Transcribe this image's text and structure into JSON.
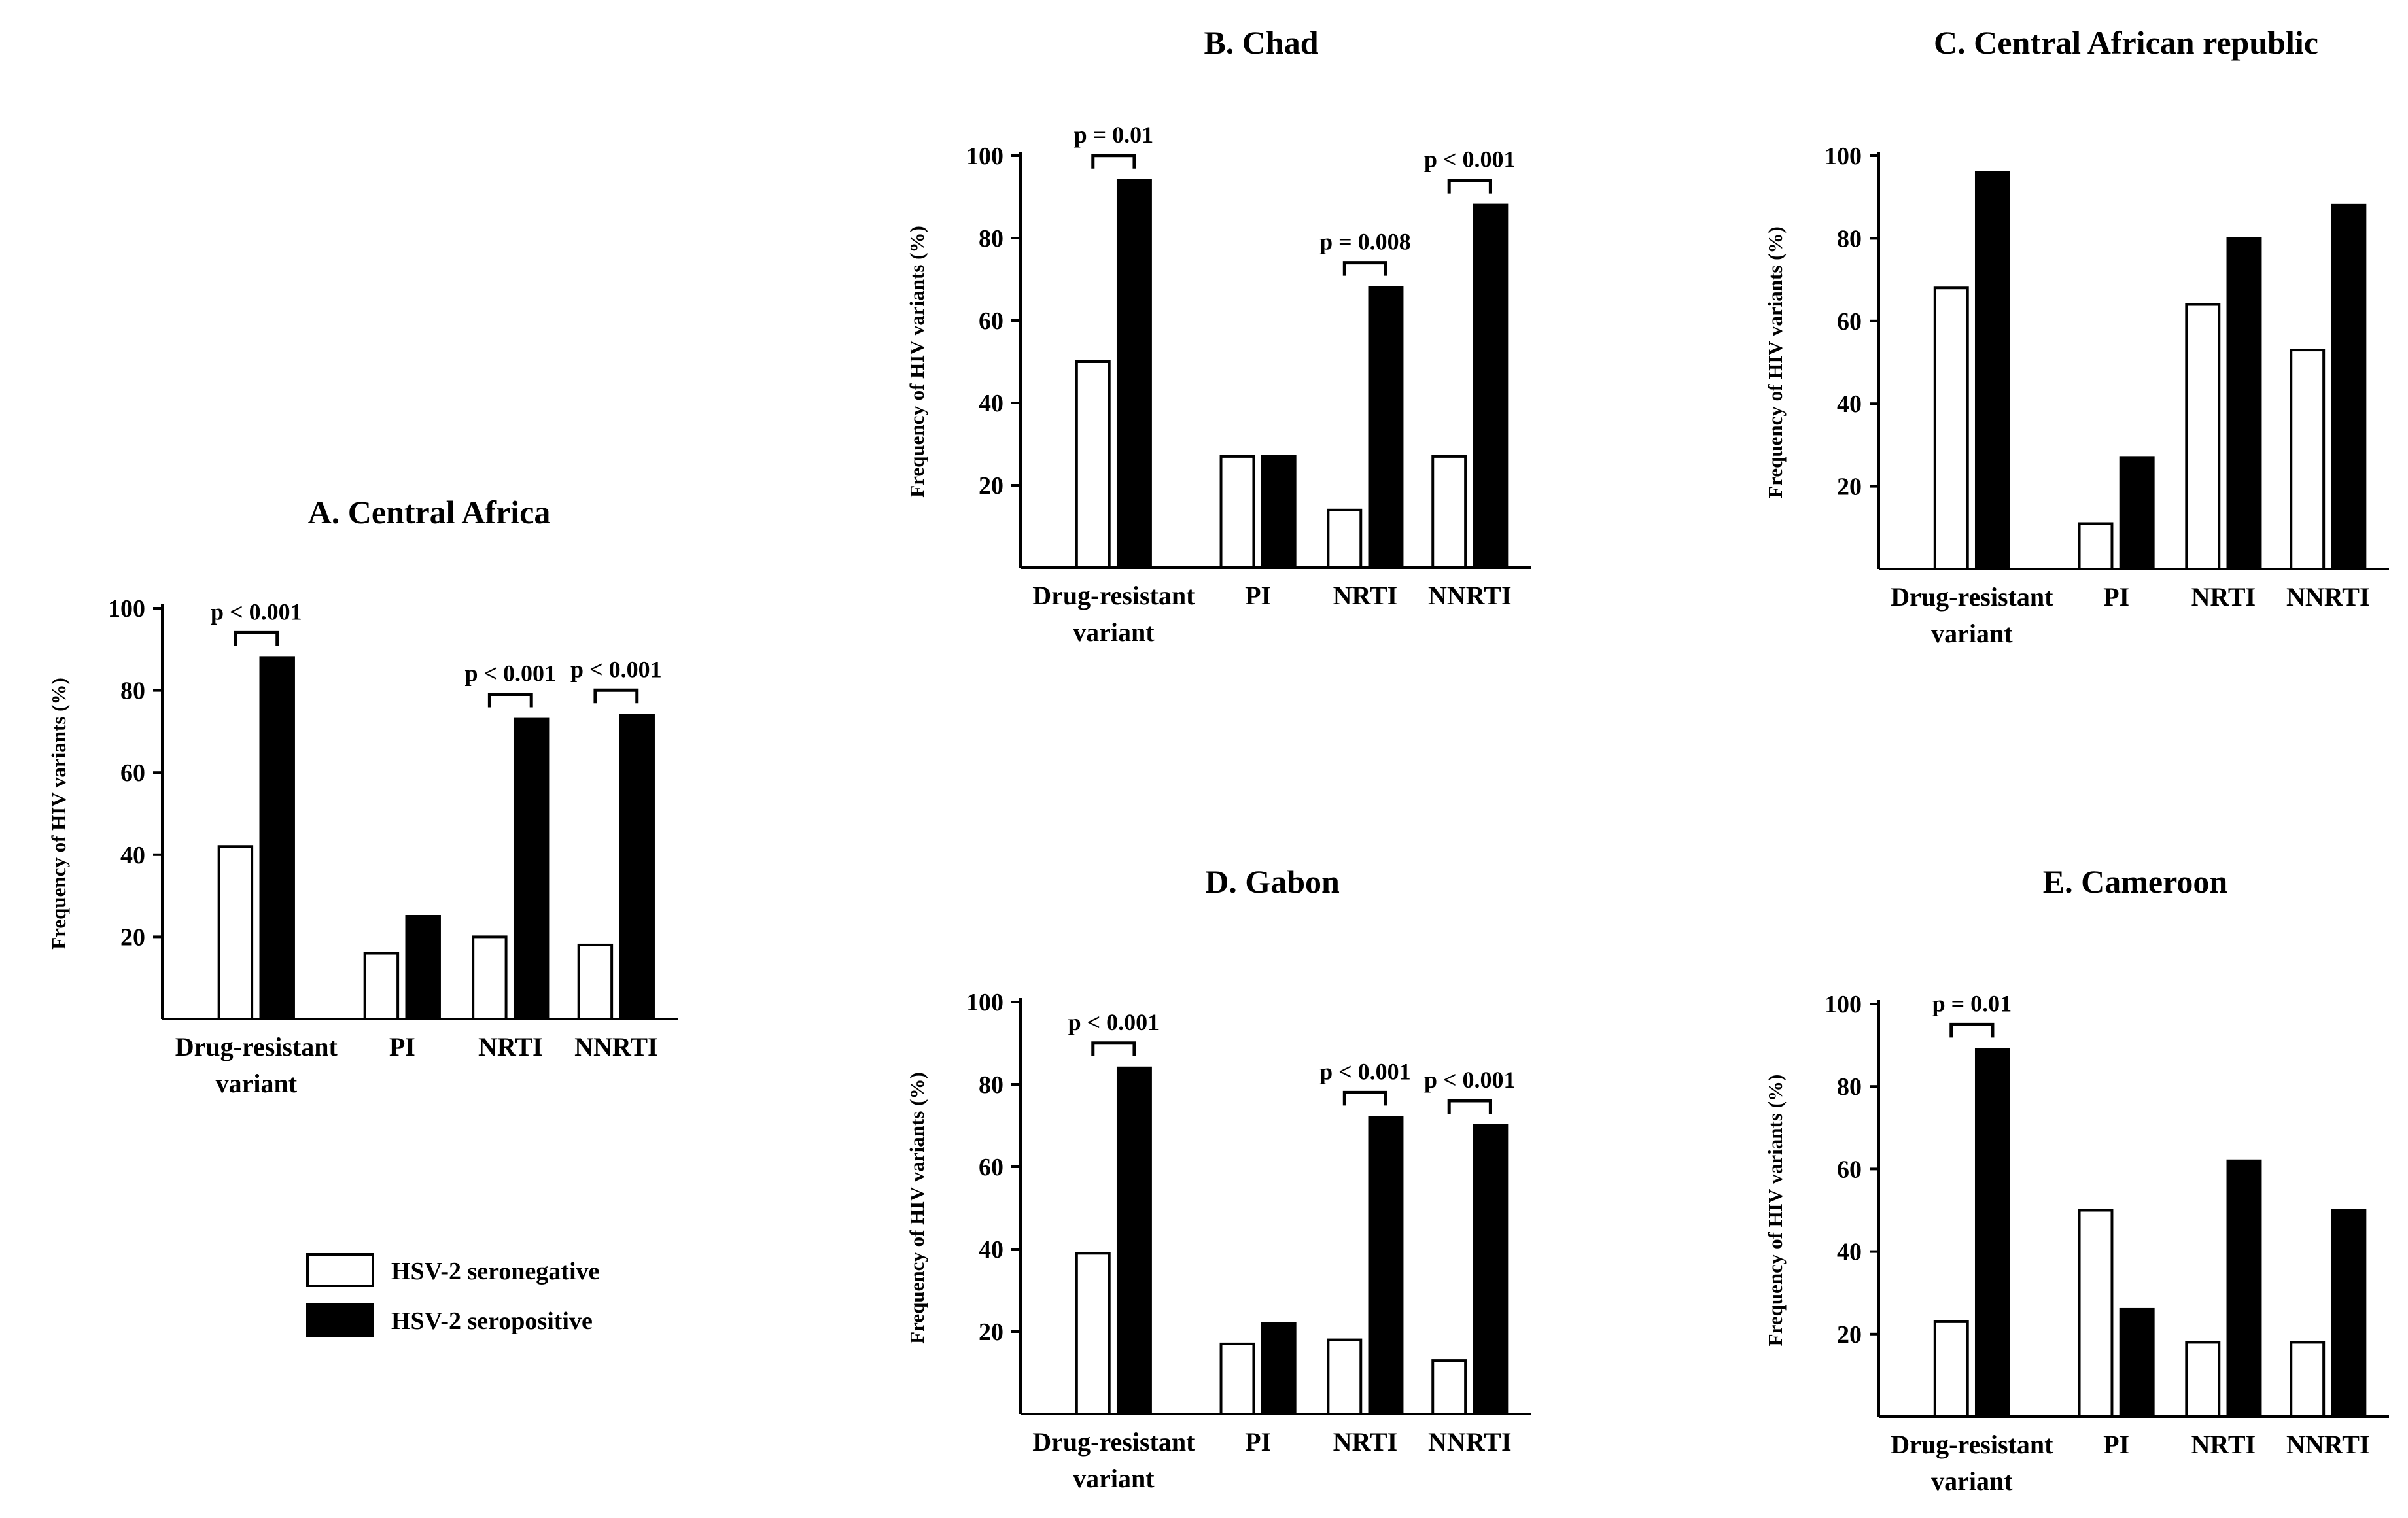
{
  "legend": {
    "seronegative": "HSV-2 seronegative",
    "seropositive": "HSV-2 seropositive",
    "seronegative_color": "#ffffff",
    "seropositive_color": "#000000"
  },
  "chart_data": [
    {
      "id": "A",
      "type": "bar",
      "title": "A. Central Africa",
      "ylabel": "Frequency of HIV variants (%)",
      "xlabel": "",
      "ylim": [
        0,
        100
      ],
      "yticks": [
        20,
        40,
        60,
        80,
        100
      ],
      "categories": [
        [
          "Drug-resistant",
          "variant"
        ],
        [
          "PI"
        ],
        [
          "NRTI"
        ],
        [
          "NNRTI"
        ]
      ],
      "series": [
        {
          "name": "HSV-2 seronegative",
          "values": [
            42,
            16,
            20,
            18
          ]
        },
        {
          "name": "HSV-2 seropositive",
          "values": [
            88,
            25,
            73,
            74
          ]
        }
      ],
      "annotations": [
        "p < 0.001",
        null,
        "p < 0.001",
        "p < 0.001"
      ]
    },
    {
      "id": "B",
      "type": "bar",
      "title": "B. Chad",
      "ylabel": "Frequency of HIV variants (%)",
      "xlabel": "",
      "ylim": [
        0,
        100
      ],
      "yticks": [
        20,
        40,
        60,
        80,
        100
      ],
      "categories": [
        [
          "Drug-resistant",
          "variant"
        ],
        [
          "PI"
        ],
        [
          "NRTI"
        ],
        [
          "NNRTI"
        ]
      ],
      "series": [
        {
          "name": "HSV-2 seronegative",
          "values": [
            50,
            27,
            14,
            27
          ]
        },
        {
          "name": "HSV-2 seropositive",
          "values": [
            94,
            27,
            68,
            88
          ]
        }
      ],
      "annotations": [
        "p = 0.01",
        null,
        "p = 0.008",
        "p < 0.001"
      ]
    },
    {
      "id": "C",
      "type": "bar",
      "title": "C. Central African republic",
      "ylabel": "Frequency of HIV variants (%)",
      "xlabel": "",
      "ylim": [
        0,
        100
      ],
      "yticks": [
        20,
        40,
        60,
        80,
        100
      ],
      "categories": [
        [
          "Drug-resistant",
          "variant"
        ],
        [
          "PI"
        ],
        [
          "NRTI"
        ],
        [
          "NNRTI"
        ]
      ],
      "series": [
        {
          "name": "HSV-2 seronegative",
          "values": [
            68,
            11,
            64,
            53
          ]
        },
        {
          "name": "HSV-2 seropositive",
          "values": [
            96,
            27,
            80,
            88
          ]
        }
      ],
      "annotations": [
        null,
        null,
        null,
        null
      ]
    },
    {
      "id": "D",
      "type": "bar",
      "title": "D. Gabon",
      "ylabel": "Frequency of HIV variants (%)",
      "xlabel": "",
      "ylim": [
        0,
        100
      ],
      "yticks": [
        20,
        40,
        60,
        80,
        100
      ],
      "categories": [
        [
          "Drug-resistant",
          "variant"
        ],
        [
          "PI"
        ],
        [
          "NRTI"
        ],
        [
          "NNRTI"
        ]
      ],
      "series": [
        {
          "name": "HSV-2 seronegative",
          "values": [
            39,
            17,
            18,
            13
          ]
        },
        {
          "name": "HSV-2 seropositive",
          "values": [
            84,
            22,
            72,
            70
          ]
        }
      ],
      "annotations": [
        "p < 0.001",
        null,
        "p < 0.001",
        "p < 0.001"
      ]
    },
    {
      "id": "E",
      "type": "bar",
      "title": "E. Cameroon",
      "ylabel": "Frequency of HIV variants (%)",
      "xlabel": "",
      "ylim": [
        0,
        100
      ],
      "yticks": [
        20,
        40,
        60,
        80,
        100
      ],
      "categories": [
        [
          "Drug-resistant",
          "variant"
        ],
        [
          "PI"
        ],
        [
          "NRTI"
        ],
        [
          "NNRTI"
        ]
      ],
      "series": [
        {
          "name": "HSV-2 seronegative",
          "values": [
            23,
            50,
            18,
            18
          ]
        },
        {
          "name": "HSV-2 seropositive",
          "values": [
            89,
            26,
            62,
            50
          ]
        }
      ],
      "annotations": [
        "p = 0.01",
        null,
        null,
        null
      ]
    }
  ]
}
